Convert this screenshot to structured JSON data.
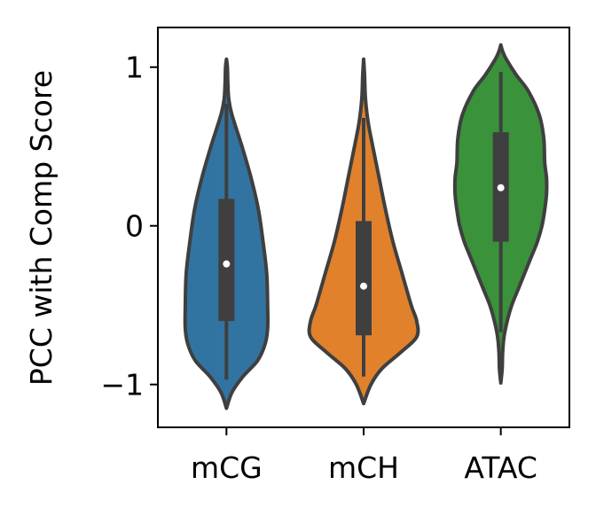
{
  "chart_data": {
    "type": "violin",
    "ylabel": "PCC with Comp Score",
    "xlabel": "",
    "title": "",
    "ylim": [
      -1.27,
      1.25
    ],
    "yticks": [
      {
        "value": 1,
        "label": "1"
      },
      {
        "value": 0,
        "label": "0"
      },
      {
        "value": -1,
        "label": "−1"
      }
    ],
    "grid": false,
    "categories": [
      "mCG",
      "mCH",
      "ATAC"
    ],
    "series": [
      {
        "color": "#3274a1",
        "median": -0.24,
        "q1": -0.6,
        "q3": 0.17,
        "whisker_low": -0.97,
        "whisker_high": 0.77,
        "density": [
          [
            -1.15,
            0.0
          ],
          [
            -1.05,
            0.06
          ],
          [
            -0.95,
            0.18
          ],
          [
            -0.85,
            0.34
          ],
          [
            -0.75,
            0.42
          ],
          [
            -0.65,
            0.45
          ],
          [
            -0.5,
            0.45
          ],
          [
            -0.3,
            0.44
          ],
          [
            -0.1,
            0.4
          ],
          [
            0.1,
            0.35
          ],
          [
            0.3,
            0.27
          ],
          [
            0.5,
            0.17
          ],
          [
            0.7,
            0.06
          ],
          [
            0.8,
            0.025
          ],
          [
            0.9,
            0.015
          ],
          [
            1.0,
            0.01
          ],
          [
            1.05,
            0.0
          ]
        ]
      },
      {
        "color": "#e1812c",
        "median": -0.38,
        "q1": -0.69,
        "q3": 0.03,
        "whisker_low": -0.95,
        "whisker_high": 0.68,
        "density": [
          [
            -1.12,
            0.0
          ],
          [
            -1.0,
            0.08
          ],
          [
            -0.9,
            0.2
          ],
          [
            -0.8,
            0.4
          ],
          [
            -0.7,
            0.58
          ],
          [
            -0.6,
            0.58
          ],
          [
            -0.5,
            0.52
          ],
          [
            -0.3,
            0.42
          ],
          [
            -0.1,
            0.32
          ],
          [
            0.1,
            0.24
          ],
          [
            0.3,
            0.17
          ],
          [
            0.5,
            0.1
          ],
          [
            0.65,
            0.05
          ],
          [
            0.8,
            0.02
          ],
          [
            0.95,
            0.01
          ],
          [
            1.05,
            0.0
          ]
        ]
      },
      {
        "color": "#3a923a",
        "median": 0.24,
        "q1": -0.1,
        "q3": 0.59,
        "whisker_low": -0.67,
        "whisker_high": 0.97,
        "density": [
          [
            -0.99,
            0.0
          ],
          [
            -0.9,
            0.015
          ],
          [
            -0.8,
            0.02
          ],
          [
            -0.7,
            0.035
          ],
          [
            -0.6,
            0.07
          ],
          [
            -0.5,
            0.12
          ],
          [
            -0.4,
            0.19
          ],
          [
            -0.3,
            0.26
          ],
          [
            -0.2,
            0.33
          ],
          [
            -0.1,
            0.4
          ],
          [
            0.0,
            0.45
          ],
          [
            0.1,
            0.48
          ],
          [
            0.2,
            0.5
          ],
          [
            0.3,
            0.5
          ],
          [
            0.4,
            0.48
          ],
          [
            0.55,
            0.47
          ],
          [
            0.7,
            0.42
          ],
          [
            0.85,
            0.3
          ],
          [
            0.95,
            0.17
          ],
          [
            1.05,
            0.06
          ],
          [
            1.1,
            0.02
          ],
          [
            1.14,
            0.0
          ]
        ]
      }
    ]
  }
}
